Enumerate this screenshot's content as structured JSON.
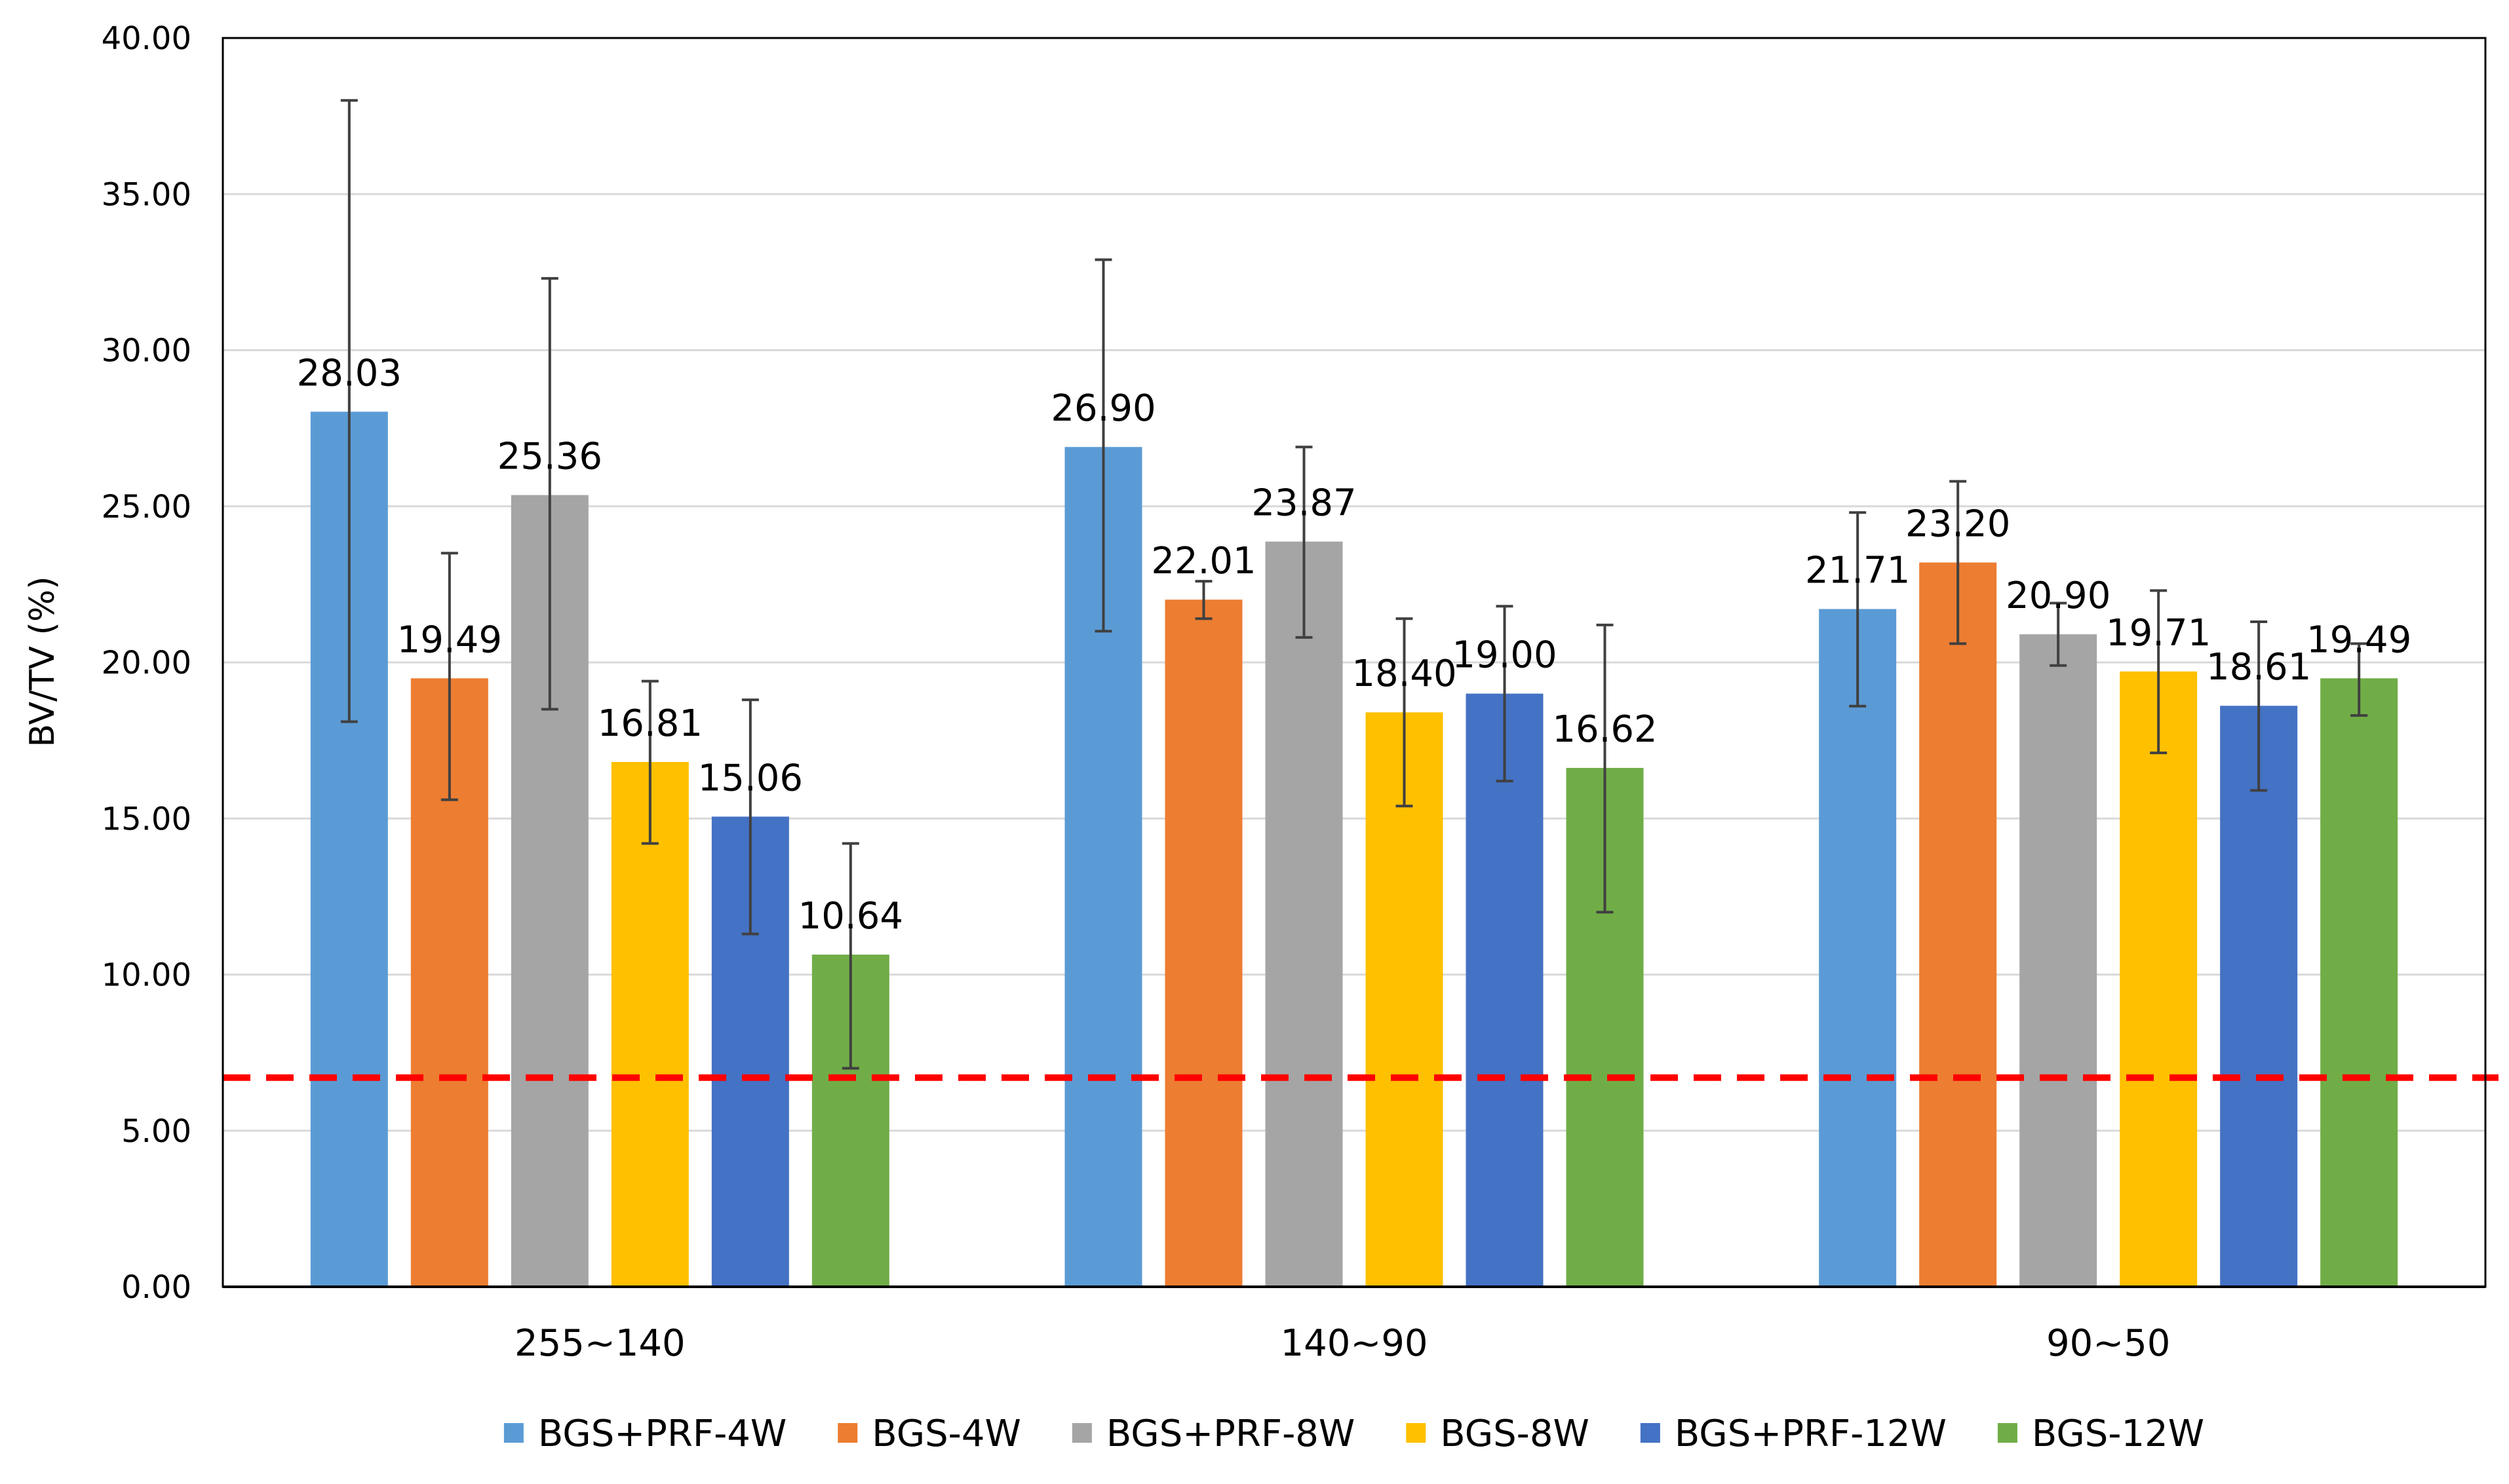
{
  "chart_data": {
    "type": "bar",
    "title": "",
    "xlabel": "",
    "ylabel": "BV/TV (%)",
    "ylim": [
      0,
      40
    ],
    "ytick_step": 5,
    "ytick_labels": [
      "0.00",
      "5.00",
      "10.00",
      "15.00",
      "20.00",
      "25.00",
      "30.00",
      "35.00",
      "40.00"
    ],
    "grid": true,
    "legend_position": "bottom",
    "categories": [
      "255~140",
      "140~90",
      "90~50"
    ],
    "series": [
      {
        "name": "BGS+PRF-4W",
        "color": "#5B9BD5",
        "values": [
          28.03,
          26.9,
          21.71
        ],
        "labels": [
          "28.03",
          "26.90",
          "21.71"
        ],
        "error_low": [
          18.1,
          21.0,
          18.6
        ],
        "error_high": [
          38.0,
          32.9,
          24.8
        ]
      },
      {
        "name": "BGS-4W",
        "color": "#ED7D31",
        "values": [
          19.49,
          22.01,
          23.2
        ],
        "labels": [
          "19.49",
          "22.01",
          "23.20"
        ],
        "error_low": [
          15.6,
          21.4,
          20.6
        ],
        "error_high": [
          23.5,
          22.6,
          25.8
        ]
      },
      {
        "name": "BGS+PRF-8W",
        "color": "#A5A5A5",
        "values": [
          25.36,
          23.87,
          20.9
        ],
        "labels": [
          "25.36",
          "23.87",
          "20.90"
        ],
        "error_low": [
          18.5,
          20.8,
          19.9
        ],
        "error_high": [
          32.3,
          26.9,
          21.9
        ]
      },
      {
        "name": "BGS-8W",
        "color": "#FFC000",
        "values": [
          16.81,
          18.4,
          19.71
        ],
        "labels": [
          "16.81",
          "18.40",
          "19.71"
        ],
        "error_low": [
          14.2,
          15.4,
          17.1
        ],
        "error_high": [
          19.4,
          21.4,
          22.3
        ]
      },
      {
        "name": "BGS+PRF-12W",
        "color": "#4472C4",
        "values": [
          15.06,
          19.0,
          18.61
        ],
        "labels": [
          "15.06",
          "19.00",
          "18.61"
        ],
        "error_low": [
          11.3,
          16.2,
          15.9
        ],
        "error_high": [
          18.8,
          21.8,
          21.3
        ]
      },
      {
        "name": "BGS-12W",
        "color": "#70AD47",
        "values": [
          10.64,
          16.62,
          19.49
        ],
        "labels": [
          "10.64",
          "16.62",
          "19.49"
        ],
        "error_low": [
          7.0,
          12.0,
          18.3
        ],
        "error_high": [
          14.2,
          21.2,
          20.6
        ]
      }
    ],
    "reference_line": {
      "value": 6.7,
      "color": "#FF0000",
      "style": "dashed"
    }
  }
}
